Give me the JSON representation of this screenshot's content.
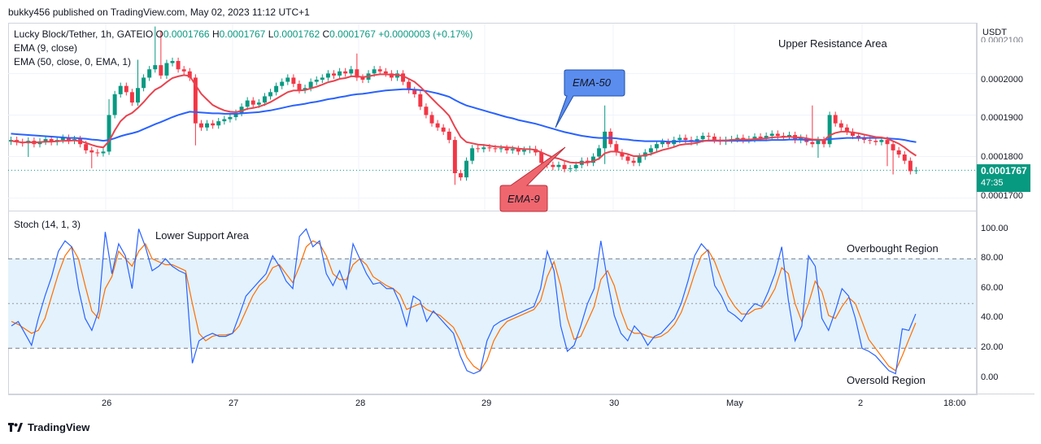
{
  "header": {
    "published": "bukky456 published on TradingView.com, May 02, 2023 11:12 UTC+1"
  },
  "legend": {
    "symbol": "Lucky Block/Tether, 1h, GATEIO",
    "o_label": "O",
    "o_value": "0.0001766",
    "h_label": "H",
    "h_value": "0.0001767",
    "l_label": "L",
    "l_value": "0.0001762",
    "c_label": "C",
    "c_value": "0.0001767",
    "change": "+0.0000003 (+0.17%)",
    "ema9": "EMA (9, close)",
    "ema50": "EMA (50, close, 0, EMA, 1)",
    "stoch": "Stoch (14, 1, 3)"
  },
  "currency": "USDT",
  "price_axis": {
    "top_partial": "0.0002100",
    "ticks": [
      "0.0002000",
      "0.0001900",
      "0.0001800",
      "0.0001700"
    ],
    "current_price": "0.0001767",
    "countdown": "47:35"
  },
  "stoch_axis": {
    "ticks": [
      "100.00",
      "80.00",
      "60.00",
      "40.00",
      "20.00",
      "0.00"
    ]
  },
  "time_axis": {
    "ticks": [
      "26",
      "27",
      "28",
      "29",
      "30",
      "May",
      "2",
      "18:00"
    ]
  },
  "annotations": {
    "upper_resistance": "Upper Resistance Area",
    "lower_support": "Lower Support Area",
    "overbought": "Overbought Region",
    "oversold": "Oversold Region",
    "ema50_callout": "EMA-50",
    "ema9_callout": "EMA-9"
  },
  "footer": {
    "brand": "TradingView"
  },
  "colors": {
    "up": "#089981",
    "down": "#f23645",
    "ema9": "#e8434f",
    "ema50": "#2962ff",
    "stoch_k": "#2962ff",
    "stoch_d": "#ff6d00",
    "band": "#e3f2fd",
    "callout_blue": "#5b8def",
    "callout_red": "#f0666f"
  },
  "chart_data": [
    {
      "type": "candlestick",
      "title": "Lucky Block/Tether, 1h, GATEIO",
      "y_range": [
        0.000167,
        0.000212
      ],
      "x_ticks": [
        "26",
        "27",
        "28",
        "29",
        "30",
        "May",
        "2",
        "18:00"
      ],
      "last": {
        "open": 0.0001766,
        "high": 0.0001767,
        "low": 0.0001762,
        "close": 0.0001767
      },
      "closes": [
        0.000184,
        0.0001835,
        0.0001832,
        0.0001838,
        0.000183,
        0.0001836,
        0.0001842,
        0.0001835,
        0.000184,
        0.0001845,
        0.0001838,
        0.0001842,
        0.000183,
        0.0001815,
        0.000181,
        0.0001808,
        0.0001812,
        0.00019,
        0.000195,
        0.000197,
        0.0001955,
        0.000193,
        0.0001965,
        0.000199,
        0.000201,
        0.000202,
        0.0001995,
        0.0002025,
        0.000203,
        0.000201,
        0.0002005,
        0.000199,
        0.000188,
        0.000187,
        0.000188,
        0.0001875,
        0.0001885,
        0.000189,
        0.0001895,
        0.0001905,
        0.000192,
        0.0001935,
        0.0001925,
        0.000193,
        0.0001945,
        0.0001955,
        0.000197,
        0.000198,
        0.000199,
        0.0001975,
        0.000196,
        0.0001965,
        0.000198,
        0.0001985,
        0.000199,
        0.0002,
        0.0001995,
        0.0002005,
        0.0002,
        0.000201,
        0.000199,
        0.0001985,
        0.0002,
        0.000201,
        0.0002005,
        0.0002,
        0.000199,
        0.0002,
        0.000198,
        0.000196,
        0.000195,
        0.000192,
        0.00019,
        0.000188,
        0.000187,
        0.000186,
        0.000184,
        0.000176,
        0.000175,
        0.000179,
        0.000182,
        0.0001818,
        0.0001822,
        0.000182,
        0.0001818,
        0.000182,
        0.0001815,
        0.0001818,
        0.0001812,
        0.0001816,
        0.0001818,
        0.000181,
        0.0001785,
        0.000178,
        0.0001775,
        0.000178,
        0.000177,
        0.0001772,
        0.000178,
        0.000179,
        0.0001785,
        0.00018,
        0.000182,
        0.000186,
        0.000183,
        0.000181,
        0.00018,
        0.000179,
        0.0001785,
        0.00018,
        0.000181,
        0.000182,
        0.000183,
        0.0001835,
        0.000183,
        0.000184,
        0.0001845,
        0.000184,
        0.0001835,
        0.0001842,
        0.000185,
        0.0001848,
        0.000184,
        0.0001836,
        0.000184,
        0.0001842,
        0.0001845,
        0.000184,
        0.0001842,
        0.0001848,
        0.0001845,
        0.000185,
        0.0001855,
        0.000185,
        0.0001848,
        0.0001852,
        0.000184,
        0.0001845,
        0.0001835,
        0.000183,
        0.000184,
        0.000183,
        0.00019,
        0.000188,
        0.000187,
        0.000186,
        0.000185,
        0.0001845,
        0.000184,
        0.0001838,
        0.0001835,
        0.000184,
        0.000183,
        0.0001815,
        0.0001805,
        0.000179,
        0.0001765,
        0.0001767
      ],
      "ema9": [
        0.0001838,
        0.0001836,
        0.0001834,
        0.0001835,
        0.0001834,
        0.0001835,
        0.0001836,
        0.0001836,
        0.0001837,
        0.0001838,
        0.0001838,
        0.0001839,
        0.0001837,
        0.0001833,
        0.0001828,
        0.0001824,
        0.0001822,
        0.0001837,
        0.0001863,
        0.0001885,
        0.0001898,
        0.0001905,
        0.0001917,
        0.0001931,
        0.0001947,
        0.0001961,
        0.0001968,
        0.0001979,
        0.0001989,
        0.0001993,
        0.0001996,
        0.0001994,
        0.0001972,
        0.0001951,
        0.0001937,
        0.0001924,
        0.0001917,
        0.0001911,
        0.0001908,
        0.0001907,
        0.000191,
        0.0001915,
        0.0001917,
        0.000192,
        0.0001925,
        0.0001931,
        0.0001939,
        0.0001947,
        0.0001955,
        0.0001959,
        0.0001959,
        0.000196,
        0.0001964,
        0.0001968,
        0.0001973,
        0.0001979,
        0.0001982,
        0.0001987,
        0.0001989,
        0.0001993,
        0.0001993,
        0.0001991,
        0.0001993,
        0.0001996,
        0.0001998,
        0.0001998,
        0.0001997,
        0.0001997,
        0.0001994,
        0.0001987,
        0.000198,
        0.0001968,
        0.0001954,
        0.000194,
        0.0001926,
        0.0001913,
        0.0001898,
        0.0001871,
        0.0001847,
        0.0001835,
        0.0001832,
        0.0001829,
        0.0001828,
        0.0001826,
        0.0001824,
        0.0001823,
        0.0001822,
        0.0001821,
        0.0001819,
        0.0001818,
        0.0001818,
        0.0001816,
        0.000181,
        0.0001804,
        0.0001798,
        0.0001795,
        0.000179,
        0.0001786,
        0.0001785,
        0.0001786,
        0.0001786,
        0.0001789,
        0.0001795,
        0.0001808,
        0.0001812,
        0.0001812,
        0.0001809,
        0.0001806,
        0.0001801,
        0.0001801,
        0.0001803,
        0.0001806,
        0.0001811,
        0.0001816,
        0.0001819,
        0.0001823,
        0.0001828,
        0.000183,
        0.0001831,
        0.0001833,
        0.0001837,
        0.0001839,
        0.0001839,
        0.0001839,
        0.0001839,
        0.000184,
        0.0001841,
        0.0001841,
        0.0001841,
        0.0001842,
        0.0001843,
        0.0001844,
        0.0001846,
        0.0001847,
        0.0001847,
        0.0001848,
        0.0001846,
        0.0001846,
        0.0001844,
        0.0001841,
        0.0001841,
        0.0001839,
        0.0001851,
        0.0001857,
        0.000186,
        0.000186,
        0.0001858,
        0.0001856,
        0.0001853,
        0.000185,
        0.0001847,
        0.0001846,
        0.0001843,
        0.0001837,
        0.0001831,
        0.0001822,
        0.0001811,
        0.0001802
      ],
      "ema50": [
        0.0001855,
        0.0001854,
        0.0001853,
        0.0001852,
        0.0001851,
        0.000185,
        0.0001849,
        0.0001848,
        0.0001847,
        0.0001846,
        0.0001845,
        0.0001845,
        0.0001844,
        0.0001843,
        0.0001841,
        0.000184,
        0.0001838,
        0.000184,
        0.0001844,
        0.0001849,
        0.0001853,
        0.0001856,
        0.000186,
        0.0001866,
        0.0001872,
        0.0001878,
        0.0001883,
        0.0001889,
        0.0001895,
        0.00019,
        0.0001904,
        0.0001908,
        0.0001907,
        0.0001906,
        0.0001905,
        0.0001904,
        0.0001904,
        0.0001903,
        0.0001903,
        0.0001903,
        0.0001904,
        0.0001905,
        0.0001906,
        0.0001907,
        0.0001909,
        0.0001911,
        0.0001914,
        0.0001917,
        0.000192,
        0.0001923,
        0.0001925,
        0.0001927,
        0.000193,
        0.0001932,
        0.0001935,
        0.0001938,
        0.000194,
        0.0001943,
        0.0001945,
        0.0001948,
        0.000195,
        0.0001951,
        0.0001953,
        0.0001955,
        0.0001957,
        0.0001959,
        0.000196,
        0.0001961,
        0.0001962,
        0.0001962,
        0.0001961,
        0.000196,
        0.0001958,
        0.0001955,
        0.0001952,
        0.0001948,
        0.0001944,
        0.0001936,
        0.0001929,
        0.0001923,
        0.0001919,
        0.0001915,
        0.0001911,
        0.0001907,
        0.0001903,
        0.0001899,
        0.0001895,
        0.0001892,
        0.0001888,
        0.0001885,
        0.0001882,
        0.0001879,
        0.0001875,
        0.0001871,
        0.0001867,
        0.0001863,
        0.0001859,
        0.0001856,
        0.0001853,
        0.000185,
        0.0001848,
        0.0001846,
        0.0001845,
        0.0001845,
        0.0001845,
        0.0001844,
        0.0001842,
        0.0001841,
        0.0001839,
        0.0001838,
        0.0001837,
        0.0001837,
        0.0001837,
        0.0001837,
        0.0001836,
        0.0001836,
        0.0001837,
        0.0001837,
        0.0001837,
        0.0001837,
        0.0001838,
        0.0001838,
        0.0001838,
        0.0001838,
        0.0001838,
        0.0001838,
        0.0001838,
        0.0001838,
        0.0001838,
        0.0001839,
        0.0001839,
        0.0001839,
        0.000184,
        0.000184,
        0.000184,
        0.0001841,
        0.0001841,
        0.0001841,
        0.000184,
        0.000184,
        0.000184,
        0.000184,
        0.0001842,
        0.0001843,
        0.0001844,
        0.0001845,
        0.0001845,
        0.0001845,
        0.0001845,
        0.0001845,
        0.0001845,
        0.0001845,
        0.0001844,
        0.0001843,
        0.0001842,
        0.000184,
        0.0001837,
        0.0001835
      ]
    },
    {
      "type": "line",
      "title": "Stoch (14, 1, 3)",
      "ylim": [
        0,
        100
      ],
      "bands": {
        "upper": 80,
        "middle": 50,
        "lower": 20
      },
      "series": [
        {
          "name": "%K",
          "values": [
            35,
            38,
            30,
            22,
            40,
            55,
            68,
            85,
            92,
            88,
            60,
            40,
            32,
            45,
            98,
            70,
            90,
            82,
            60,
            100,
            88,
            72,
            75,
            80,
            75,
            72,
            70,
            10,
            25,
            28,
            30,
            28,
            28,
            30,
            42,
            55,
            60,
            65,
            70,
            82,
            75,
            65,
            60,
            95,
            100,
            88,
            92,
            70,
            62,
            72,
            60,
            90,
            80,
            70,
            63,
            64,
            60,
            60,
            50,
            35,
            55,
            52,
            38,
            45,
            40,
            35,
            30,
            15,
            5,
            3,
            5,
            25,
            35,
            38,
            40,
            42,
            44,
            46,
            48,
            60,
            85,
            72,
            35,
            18,
            22,
            35,
            50,
            60,
            92,
            65,
            42,
            30,
            25,
            35,
            30,
            22,
            28,
            30,
            35,
            40,
            50,
            65,
            82,
            90,
            85,
            62,
            55,
            45,
            42,
            38,
            45,
            50,
            48,
            58,
            70,
            88,
            52,
            25,
            35,
            82,
            75,
            40,
            32,
            45,
            60,
            55,
            40,
            20,
            18,
            15,
            10,
            5,
            3,
            33,
            32,
            43
          ]
        },
        {
          "name": "%D",
          "values": [
            38,
            36,
            33,
            30,
            32,
            40,
            55,
            70,
            82,
            88,
            80,
            62,
            45,
            40,
            60,
            68,
            85,
            80,
            75,
            85,
            90,
            80,
            78,
            76,
            76,
            74,
            72,
            50,
            30,
            25,
            28,
            29,
            29,
            30,
            35,
            45,
            55,
            62,
            66,
            74,
            76,
            70,
            64,
            75,
            88,
            92,
            90,
            82,
            70,
            66,
            66,
            76,
            80,
            76,
            68,
            65,
            62,
            60,
            56,
            46,
            48,
            50,
            46,
            44,
            42,
            38,
            34,
            25,
            14,
            8,
            5,
            12,
            25,
            33,
            38,
            40,
            42,
            44,
            46,
            52,
            68,
            78,
            62,
            40,
            26,
            28,
            38,
            48,
            66,
            72,
            62,
            45,
            33,
            30,
            30,
            28,
            27,
            28,
            31,
            36,
            44,
            56,
            70,
            82,
            86,
            78,
            66,
            55,
            48,
            43,
            43,
            46,
            47,
            52,
            60,
            74,
            70,
            50,
            38,
            50,
            65,
            58,
            42,
            40,
            48,
            54,
            50,
            38,
            26,
            20,
            14,
            8,
            5,
            15,
            26,
            37
          ]
        }
      ]
    }
  ]
}
